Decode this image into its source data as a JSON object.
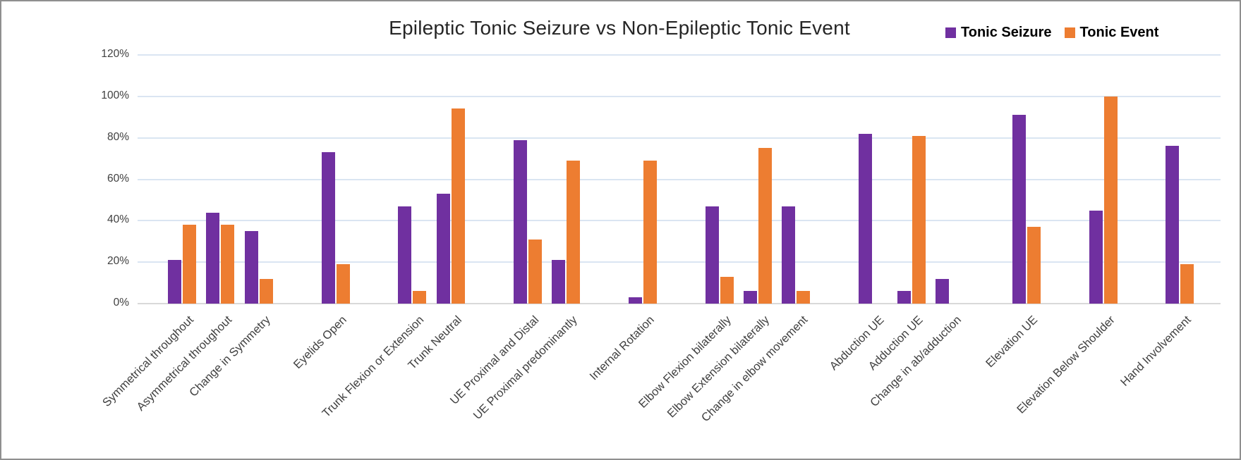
{
  "window": {
    "background": "#ffffff",
    "frame_border": "#8f8f8f"
  },
  "title": "Epileptic Tonic Seizure vs Non-Epileptic Tonic Event",
  "legend": {
    "position": "top-right",
    "items": [
      {
        "label": "Tonic Seizure",
        "color": "#7030A0"
      },
      {
        "label": "Tonic Event",
        "color": "#ED7D31"
      }
    ]
  },
  "colors": {
    "purple_series": "#7030A0",
    "orange_series": "#ED7D31",
    "gridline": "#DAE5F2",
    "axis_line": "#D9D9D9",
    "tick_text": "#404040",
    "title_text": "#262626"
  },
  "chart_data": {
    "type": "bar",
    "title": "Epileptic Tonic Seizure vs Non-Epileptic Tonic Event",
    "xlabel": "",
    "ylabel": "",
    "ylim": [
      0,
      120
    ],
    "y_tick_step": 20,
    "y_tick_labels": [
      "0%",
      "20%",
      "40%",
      "60%",
      "80%",
      "100%",
      "120%"
    ],
    "grid": true,
    "legend_position": "top-right",
    "categories": [
      "Symmetrical throughout",
      "Asymmetrical throughout",
      "Change in Symmetry",
      "Eyelids Open",
      "Trunk Flexion or Extension",
      "Trunk Neutral",
      "UE Proximal and Distal",
      "UE Proximal predominantly",
      "Internal Rotation",
      "Elbow Flexion bilaterally",
      "Elbow Extension bilaterally",
      "Change in elbow movement",
      "Abduction UE",
      "Adduction UE",
      "Change in ab/adduction",
      "Elevation UE",
      "Elevation Below Shoulder",
      "Hand Involvement"
    ],
    "category_slots": [
      0,
      1,
      2,
      4,
      6,
      7,
      9,
      10,
      12,
      14,
      15,
      16,
      18,
      19,
      20,
      22,
      24,
      26
    ],
    "total_slots": 27,
    "series": [
      {
        "name": "Tonic Seizure",
        "color": "#7030A0",
        "values": [
          21,
          44,
          35,
          73,
          47,
          53,
          79,
          21,
          3,
          47,
          6,
          47,
          82,
          6,
          12,
          91,
          45,
          76
        ]
      },
      {
        "name": "Tonic Event",
        "color": "#ED7D31",
        "values": [
          38,
          38,
          12,
          19,
          6,
          94,
          31,
          69,
          69,
          13,
          75,
          6,
          0,
          81,
          0,
          37,
          100,
          19
        ]
      }
    ]
  }
}
